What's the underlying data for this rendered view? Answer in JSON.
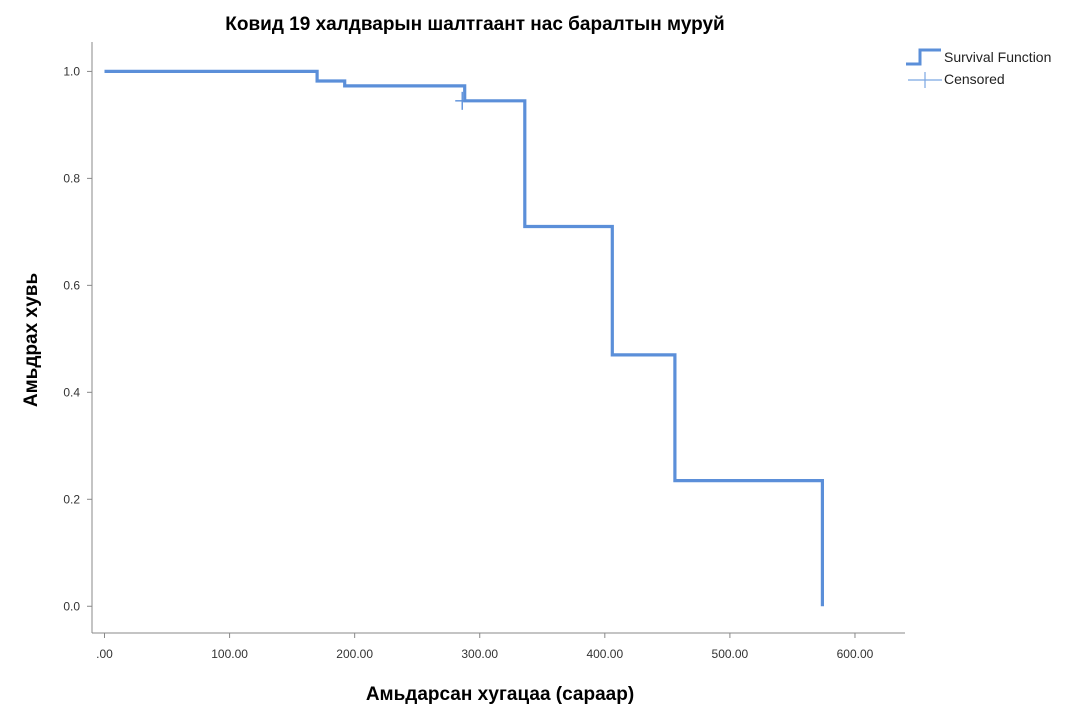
{
  "chart_data": {
    "type": "line",
    "title": "Ковид 19 халдварын шалтгаант нас баралтын муруй",
    "xlabel": "Амьдарсан хугацаа (сараар)",
    "ylabel": "Амьдрах хувь",
    "xlim": [
      -10,
      640
    ],
    "ylim": [
      -0.05,
      1.055
    ],
    "x_ticks": [
      0,
      100,
      200,
      300,
      400,
      500,
      600
    ],
    "x_tick_labels": [
      ".00",
      "100.00",
      "200.00",
      "300.00",
      "400.00",
      "500.00",
      "600.00"
    ],
    "y_ticks": [
      0.0,
      0.2,
      0.4,
      0.6,
      0.8,
      1.0
    ],
    "y_tick_labels": [
      "0.0",
      "0.2",
      "0.4",
      "0.6",
      "0.8",
      "1.0"
    ],
    "grid": false,
    "legend_position": "top-right",
    "step": true,
    "series": [
      {
        "name": "Survival Function",
        "color": "#5b8fd9",
        "x": [
          0,
          170,
          170,
          192,
          192,
          288,
          288,
          336,
          336,
          406,
          406,
          456,
          456,
          574,
          574
        ],
        "y": [
          1.0,
          1.0,
          0.982,
          0.982,
          0.973,
          0.973,
          0.945,
          0.945,
          0.71,
          0.71,
          0.47,
          0.47,
          0.235,
          0.235,
          0.0
        ]
      }
    ],
    "censored": {
      "name": "Censored",
      "color": "#5b8fd9",
      "points": [
        {
          "x": 286,
          "y": 0.945
        }
      ]
    }
  }
}
